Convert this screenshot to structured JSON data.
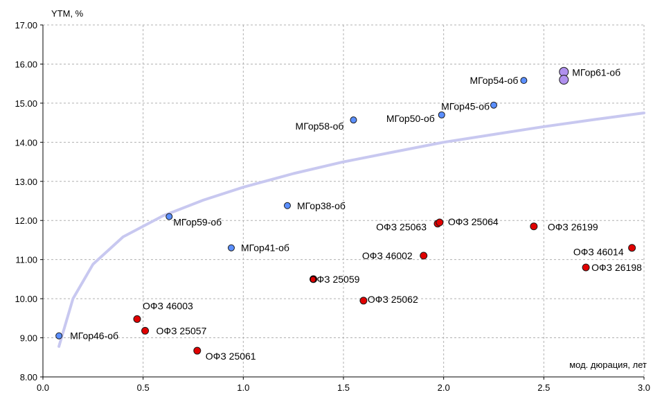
{
  "chart_data": {
    "type": "scatter",
    "ylabel": "YTM, %",
    "xlabel": "мод. дюрация, лет",
    "xlim": [
      0.0,
      3.0
    ],
    "ylim": [
      8.0,
      17.0
    ],
    "x_ticks": [
      "0.0",
      "0.5",
      "1.0",
      "1.5",
      "2.0",
      "2.5",
      "3.0"
    ],
    "y_ticks": [
      "8.00",
      "9.00",
      "10.00",
      "11.00",
      "12.00",
      "13.00",
      "14.00",
      "15.00",
      "16.00",
      "17.00"
    ],
    "grid": true,
    "colors": {
      "mgor": "#5b8fff",
      "mgor_large": "#b090ee",
      "ofz": "#e00000",
      "curve": "#c8c8f0",
      "grid": "#b0b0b0"
    },
    "series": [
      {
        "points": [
          {
            "label": "МГор46-об",
            "x": 0.08,
            "y": 9.05
          },
          {
            "label": "МГор59-об",
            "x": 0.63,
            "y": 12.1
          },
          {
            "label": "МГор41-об",
            "x": 0.94,
            "y": 11.3
          },
          {
            "label": "МГор38-об",
            "x": 1.22,
            "y": 12.38
          },
          {
            "label": "МГор58-об",
            "x": 1.55,
            "y": 14.57
          },
          {
            "label": "МГор50-об",
            "x": 1.99,
            "y": 14.7
          },
          {
            "label": "МГор45-об",
            "x": 2.25,
            "y": 14.95
          },
          {
            "label": "МГор54-об",
            "x": 2.4,
            "y": 15.58
          }
        ]
      },
      {
        "points": [
          {
            "label": "МГор61-об",
            "x": 2.6,
            "y": 15.8
          },
          {
            "label": "",
            "x": 2.6,
            "y": 15.6
          }
        ]
      },
      {
        "points": [
          {
            "label": "ОФЗ 46003",
            "x": 0.47,
            "y": 9.48
          },
          {
            "label": "ОФЗ 25057",
            "x": 0.51,
            "y": 9.18
          },
          {
            "label": "ОФЗ 25061",
            "x": 0.77,
            "y": 8.67
          },
          {
            "label": "ОФЗ 25059",
            "x": 1.35,
            "y": 10.5
          },
          {
            "label": "ОФЗ 25062",
            "x": 1.6,
            "y": 9.95
          },
          {
            "label": "ОФЗ 46002",
            "x": 1.9,
            "y": 11.1
          },
          {
            "label": "ОФЗ 25063",
            "x": 1.97,
            "y": 11.92
          },
          {
            "label": "ОФЗ 25064",
            "x": 1.98,
            "y": 11.95
          },
          {
            "label": "ОФЗ 26199",
            "x": 2.45,
            "y": 11.85
          },
          {
            "label": "ОФЗ 46014",
            "x": 2.94,
            "y": 11.3
          },
          {
            "label": "ОФЗ 26198",
            "x": 2.71,
            "y": 10.8
          }
        ]
      }
    ],
    "trend_curve": {
      "type": "logarithmic",
      "x": [
        0.08,
        0.15,
        0.25,
        0.4,
        0.6,
        0.8,
        1.0,
        1.25,
        1.5,
        1.75,
        2.0,
        2.25,
        2.5,
        2.75,
        3.0
      ],
      "y": [
        8.78,
        10.0,
        10.88,
        11.58,
        12.12,
        12.52,
        12.85,
        13.2,
        13.5,
        13.75,
        14.0,
        14.2,
        14.4,
        14.58,
        14.75
      ]
    }
  }
}
